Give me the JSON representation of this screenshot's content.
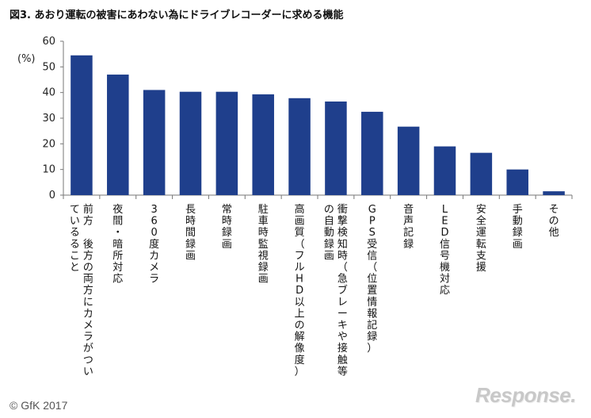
{
  "header": {
    "title": "図3. あおり運転の被害にあわない為にドライブレコーダーに求める機能"
  },
  "footer": {
    "copyright": "© GfK 2017",
    "logo": "Response."
  },
  "chart_data": {
    "type": "bar",
    "title": "図3. あおり運転の被害にあわない為にドライブレコーダーに求める機能",
    "xlabel": "",
    "ylabel": "(%)",
    "ylim": [
      0,
      60
    ],
    "yticks": [
      0,
      10,
      20,
      30,
      40,
      50,
      60
    ],
    "grid": false,
    "bar_color": "#1f3f8c",
    "categories": [
      "前方　後方の両方にカメラがついているること",
      "夜間・暗所対応",
      "360度カメラ",
      "長時間録画",
      "常時録画",
      "駐車時監視録画",
      "高画質（フルHD以上の解像度）",
      "衝撃検知時（急ブレーキや接触等の自動録画",
      "GPS受信（位置情報記録）",
      "音声記録",
      "LED信号機対応",
      "安全運転支援",
      "手動録画",
      "その他"
    ],
    "label_columns": [
      [
        "前方　後方の両方にカメラがつい",
        "ているること"
      ],
      [
        "夜間・暗所対応"
      ],
      [
        "360度カメラ"
      ],
      [
        "長時間録画"
      ],
      [
        "常時録画"
      ],
      [
        "駐車時監視録画"
      ],
      [
        "高画質（フルHD以上の解像度）"
      ],
      [
        "衝撃検知時（急ブレーキや接触等",
        "の自動録画"
      ],
      [
        "GPS受信（位置情報記録）"
      ],
      [
        "音声記録"
      ],
      [
        "LED信号機対応"
      ],
      [
        "安全運転支援"
      ],
      [
        "手動録画"
      ],
      [
        "その他"
      ]
    ],
    "values": [
      54.5,
      47,
      41,
      40.3,
      40.3,
      39.3,
      37.8,
      36.5,
      32.5,
      26.7,
      19,
      16.5,
      10,
      1.5
    ]
  }
}
